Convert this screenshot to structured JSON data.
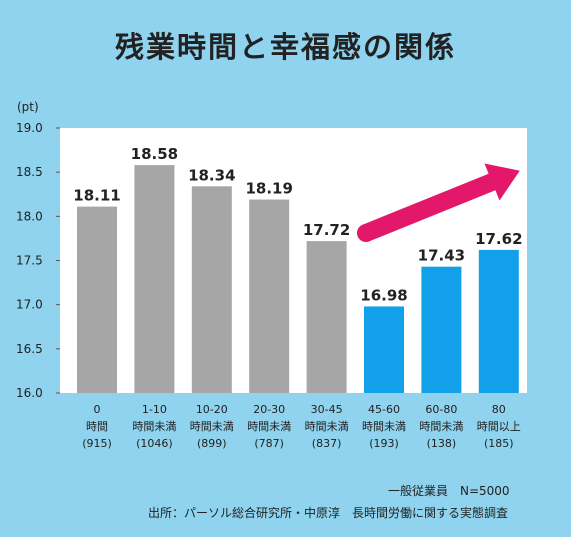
{
  "title": "残業時間と幸福感の関係",
  "chart_data": {
    "type": "bar",
    "title": "残業時間と幸福感の関係",
    "ylabel": "(pt)",
    "ylim": [
      16.0,
      19.0
    ],
    "yticks": [
      "16.0",
      "16.5",
      "17.0",
      "17.5",
      "18.0",
      "18.5",
      "19.0"
    ],
    "categories": [
      [
        "0",
        "時間",
        "(915)"
      ],
      [
        "1-10",
        "時間未満",
        "(1046)"
      ],
      [
        "10-20",
        "時間未満",
        "(899)"
      ],
      [
        "20-30",
        "時間未満",
        "(787)"
      ],
      [
        "30-45",
        "時間未満",
        "(837)"
      ],
      [
        "45-60",
        "時間未満",
        "(193)"
      ],
      [
        "60-80",
        "時間未満",
        "(138)"
      ],
      [
        "80",
        "時間以上",
        "(185)"
      ]
    ],
    "values": [
      18.11,
      18.58,
      18.34,
      18.19,
      17.72,
      16.98,
      17.43,
      17.62
    ],
    "value_labels": [
      "18.11",
      "18.58",
      "18.34",
      "18.19",
      "17.72",
      "16.98",
      "17.43",
      "17.62"
    ],
    "colors": [
      "#a6a6a6",
      "#a6a6a6",
      "#a6a6a6",
      "#a6a6a6",
      "#a6a6a6",
      "#12a0ea",
      "#12a0ea",
      "#12a0ea"
    ],
    "arrow_color": "#e4186a",
    "grid": false
  },
  "notes": {
    "sample": "一般従業員　N=5000",
    "source": "出所：パーソル総合研究所・中原淳　長時間労働に関する実態調査"
  }
}
